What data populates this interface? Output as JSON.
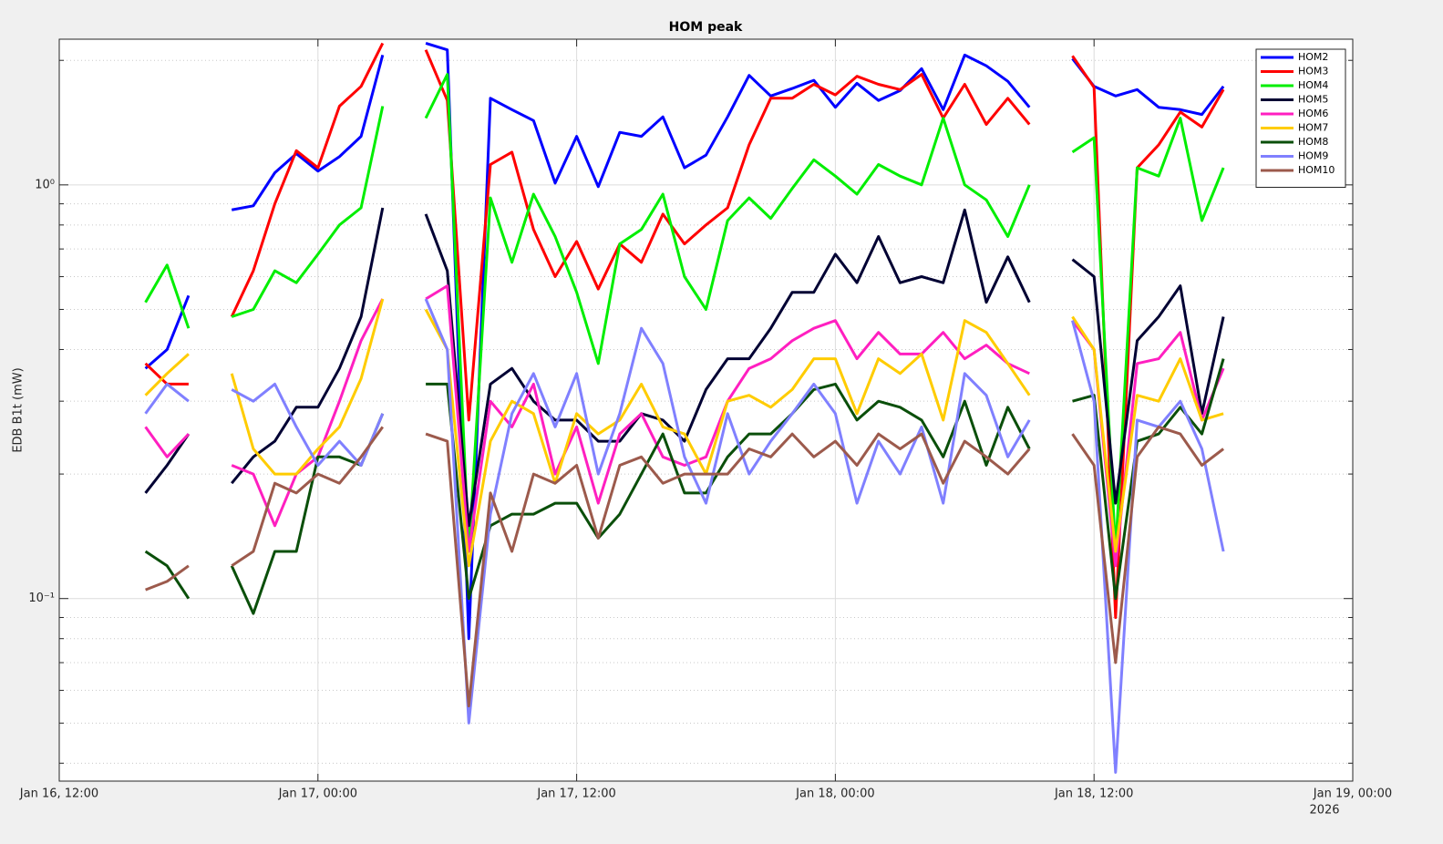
{
  "chart_data": {
    "type": "line",
    "title": "HOM peak",
    "ylabel": "EDB B1t (mW)",
    "yscale": "log",
    "grid": true,
    "legend": "top-right",
    "x_secondary_label": "2026",
    "xlim": [
      "2026-01-16 12:00",
      "2026-01-19 00:00"
    ],
    "xticks": [
      {
        "value": "2026-01-16 12:00",
        "label": "Jan 16, 12:00"
      },
      {
        "value": "2026-01-17 00:00",
        "label": "Jan 17, 00:00"
      },
      {
        "value": "2026-01-17 12:00",
        "label": "Jan 17, 12:00"
      },
      {
        "value": "2026-01-18 00:00",
        "label": "Jan 18, 00:00"
      },
      {
        "value": "2026-01-18 12:00",
        "label": "Jan 18, 12:00"
      },
      {
        "value": "2026-01-19 00:00",
        "label": "Jan 19, 00:00"
      }
    ],
    "ylim": [
      0.0362,
      2.25
    ],
    "yticks": [
      {
        "value": 0.1,
        "label": "10⁻¹"
      },
      {
        "value": 1,
        "label": "10⁰"
      }
    ],
    "yminorticks": [
      0.04,
      0.05,
      0.06,
      0.07,
      0.08,
      0.09,
      0.2,
      0.3,
      0.4,
      0.5,
      0.6,
      0.7,
      0.8,
      0.9,
      2
    ],
    "x": [
      "2026-01-16 16:00",
      "2026-01-16 17:00",
      "2026-01-16 18:00",
      "2026-01-16 19:00",
      "2026-01-16 20:00",
      "2026-01-16 21:00",
      "2026-01-16 22:00",
      "2026-01-16 23:00",
      "2026-01-17 00:00",
      "2026-01-17 01:00",
      "2026-01-17 02:00",
      "2026-01-17 03:00",
      "2026-01-17 04:00",
      "2026-01-17 05:00",
      "2026-01-17 06:00",
      "2026-01-17 07:00",
      "2026-01-17 08:00",
      "2026-01-17 09:00",
      "2026-01-17 10:00",
      "2026-01-17 11:00",
      "2026-01-17 12:00",
      "2026-01-17 13:00",
      "2026-01-17 14:00",
      "2026-01-17 15:00",
      "2026-01-17 16:00",
      "2026-01-17 17:00",
      "2026-01-17 18:00",
      "2026-01-17 19:00",
      "2026-01-17 20:00",
      "2026-01-17 21:00",
      "2026-01-17 22:00",
      "2026-01-17 23:00",
      "2026-01-18 00:00",
      "2026-01-18 01:00",
      "2026-01-18 02:00",
      "2026-01-18 03:00",
      "2026-01-18 04:00",
      "2026-01-18 05:00",
      "2026-01-18 06:00",
      "2026-01-18 07:00",
      "2026-01-18 08:00",
      "2026-01-18 09:00",
      "2026-01-18 10:00",
      "2026-01-18 11:00",
      "2026-01-18 12:00",
      "2026-01-18 13:00",
      "2026-01-18 14:00",
      "2026-01-18 15:00",
      "2026-01-18 16:00",
      "2026-01-18 17:00",
      "2026-01-18 18:00"
    ],
    "series": [
      {
        "name": "HOM2",
        "color": "#0000ff",
        "values": [
          0.36,
          0.4,
          0.54,
          null,
          0.87,
          0.89,
          1.07,
          1.19,
          1.08,
          1.17,
          1.31,
          2.06,
          null,
          2.2,
          2.12,
          0.08,
          1.62,
          1.52,
          1.43,
          1.01,
          1.31,
          0.99,
          1.34,
          1.31,
          1.46,
          1.1,
          1.18,
          1.46,
          1.84,
          1.64,
          1.71,
          1.79,
          1.54,
          1.76,
          1.6,
          1.69,
          1.91,
          1.52,
          2.06,
          1.94,
          1.78,
          1.54,
          null,
          2.02,
          1.73,
          1.64,
          1.7,
          1.54,
          1.52,
          1.48,
          1.73
        ]
      },
      {
        "name": "HOM3",
        "color": "#ff0000",
        "values": [
          0.37,
          0.33,
          0.33,
          null,
          0.48,
          0.62,
          0.9,
          1.21,
          1.1,
          1.55,
          1.73,
          2.2,
          null,
          2.12,
          1.6,
          0.27,
          1.12,
          1.2,
          0.78,
          0.6,
          0.73,
          0.56,
          0.72,
          0.65,
          0.85,
          0.72,
          0.8,
          0.88,
          1.25,
          1.62,
          1.62,
          1.75,
          1.65,
          1.83,
          1.75,
          1.7,
          1.85,
          1.45,
          1.75,
          1.4,
          1.62,
          1.4,
          null,
          2.05,
          1.72,
          0.09,
          1.1,
          1.25,
          1.5,
          1.38,
          1.7
        ]
      },
      {
        "name": "HOM4",
        "color": "#00ee00",
        "values": [
          0.52,
          0.64,
          0.45,
          null,
          0.48,
          0.5,
          0.62,
          0.58,
          0.68,
          0.8,
          0.88,
          1.55,
          null,
          1.45,
          1.85,
          0.13,
          0.93,
          0.65,
          0.95,
          0.75,
          0.55,
          0.37,
          0.72,
          0.78,
          0.95,
          0.6,
          0.5,
          0.82,
          0.93,
          0.83,
          0.98,
          1.15,
          1.05,
          0.95,
          1.12,
          1.05,
          1.0,
          1.45,
          1.0,
          0.92,
          0.75,
          1.0,
          null,
          1.2,
          1.3,
          0.13,
          1.1,
          1.05,
          1.45,
          0.82,
          1.1
        ]
      },
      {
        "name": "HOM5",
        "color": "#000033",
        "values": [
          0.18,
          0.21,
          0.25,
          null,
          0.19,
          0.22,
          0.24,
          0.29,
          0.29,
          0.36,
          0.48,
          0.88,
          null,
          0.85,
          0.62,
          0.15,
          0.33,
          0.36,
          0.3,
          0.27,
          0.27,
          0.24,
          0.24,
          0.28,
          0.27,
          0.24,
          0.32,
          0.38,
          0.38,
          0.45,
          0.55,
          0.55,
          0.68,
          0.58,
          0.75,
          0.58,
          0.6,
          0.58,
          0.87,
          0.52,
          0.67,
          0.52,
          null,
          0.66,
          0.6,
          0.17,
          0.42,
          0.48,
          0.57,
          0.28,
          0.48
        ]
      },
      {
        "name": "HOM6",
        "color": "#ff1fc0",
        "values": [
          0.26,
          0.22,
          0.25,
          null,
          0.21,
          0.2,
          0.15,
          0.2,
          0.22,
          0.3,
          0.42,
          0.53,
          null,
          0.53,
          0.57,
          0.13,
          0.3,
          0.26,
          0.33,
          0.2,
          0.26,
          0.17,
          0.25,
          0.28,
          0.22,
          0.21,
          0.22,
          0.3,
          0.36,
          0.38,
          0.42,
          0.45,
          0.47,
          0.38,
          0.44,
          0.39,
          0.39,
          0.44,
          0.38,
          0.41,
          0.37,
          0.35,
          null,
          0.47,
          0.4,
          0.12,
          0.37,
          0.38,
          0.44,
          0.27,
          0.36
        ]
      },
      {
        "name": "HOM7",
        "color": "#ffcc00",
        "values": [
          0.31,
          0.35,
          0.39,
          null,
          0.35,
          0.23,
          0.2,
          0.2,
          0.23,
          0.26,
          0.34,
          0.53,
          null,
          0.5,
          0.4,
          0.12,
          0.24,
          0.3,
          0.28,
          0.19,
          0.28,
          0.25,
          0.27,
          0.33,
          0.26,
          0.25,
          0.2,
          0.3,
          0.31,
          0.29,
          0.32,
          0.38,
          0.38,
          0.28,
          0.38,
          0.35,
          0.39,
          0.27,
          0.47,
          0.44,
          0.37,
          0.31,
          null,
          0.48,
          0.4,
          0.13,
          0.31,
          0.3,
          0.38,
          0.27,
          0.28
        ]
      },
      {
        "name": "HOM8",
        "color": "#0a4f0a",
        "values": [
          0.13,
          0.12,
          0.1,
          null,
          0.12,
          0.092,
          0.13,
          0.13,
          0.22,
          0.22,
          0.21,
          0.28,
          null,
          0.33,
          0.33,
          0.1,
          0.15,
          0.16,
          0.16,
          0.17,
          0.17,
          0.14,
          0.16,
          0.2,
          0.25,
          0.18,
          0.18,
          0.22,
          0.25,
          0.25,
          0.28,
          0.32,
          0.33,
          0.27,
          0.3,
          0.29,
          0.27,
          0.22,
          0.3,
          0.21,
          0.29,
          0.23,
          null,
          0.3,
          0.31,
          0.1,
          0.24,
          0.25,
          0.29,
          0.25,
          0.38
        ]
      },
      {
        "name": "HOM9",
        "color": "#8080ff",
        "values": [
          0.28,
          0.33,
          0.3,
          null,
          0.32,
          0.3,
          0.33,
          0.26,
          0.21,
          0.24,
          0.21,
          0.28,
          null,
          0.53,
          0.4,
          0.05,
          0.16,
          0.28,
          0.35,
          0.26,
          0.35,
          0.2,
          0.28,
          0.45,
          0.37,
          0.22,
          0.17,
          0.28,
          0.2,
          0.24,
          0.28,
          0.33,
          0.28,
          0.17,
          0.24,
          0.2,
          0.26,
          0.17,
          0.35,
          0.31,
          0.22,
          0.27,
          null,
          0.47,
          0.3,
          0.038,
          0.27,
          0.26,
          0.3,
          0.23,
          0.13
        ]
      },
      {
        "name": "HOM10",
        "color": "#9c5a4c",
        "values": [
          0.105,
          0.11,
          0.12,
          null,
          0.12,
          0.13,
          0.19,
          0.18,
          0.2,
          0.19,
          0.22,
          0.26,
          null,
          0.25,
          0.24,
          0.055,
          0.18,
          0.13,
          0.2,
          0.19,
          0.21,
          0.14,
          0.21,
          0.22,
          0.19,
          0.2,
          0.2,
          0.2,
          0.23,
          0.22,
          0.25,
          0.22,
          0.24,
          0.21,
          0.25,
          0.23,
          0.25,
          0.19,
          0.24,
          0.22,
          0.2,
          0.23,
          null,
          0.25,
          0.21,
          0.07,
          0.22,
          0.26,
          0.25,
          0.21,
          0.23
        ]
      }
    ]
  }
}
